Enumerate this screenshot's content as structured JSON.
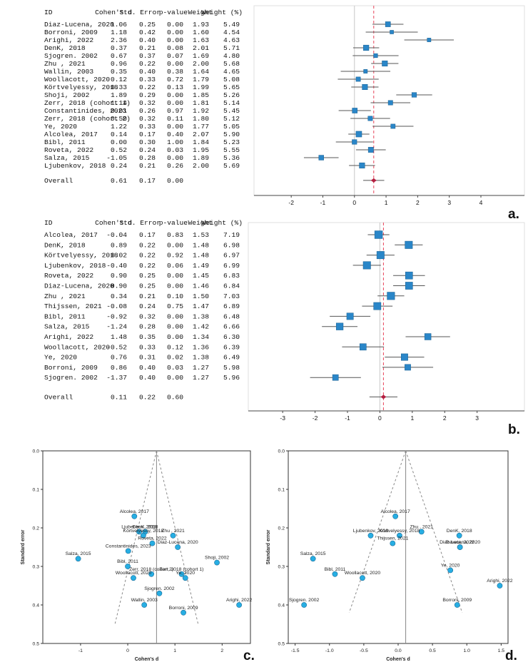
{
  "chart_data": [
    {
      "type": "forest",
      "panel": "a.",
      "headers": [
        "ID",
        "Cohen's d",
        "Std. Error",
        "p-value",
        "Weight",
        "Weight (%)"
      ],
      "rows": [
        {
          "id": "Diaz-Lucena, 2020",
          "d": "1.06",
          "se": "0.25",
          "p": "0.00",
          "w": "1.93",
          "wp": "5.49"
        },
        {
          "id": "Borroni, 2009",
          "d": "1.18",
          "se": "0.42",
          "p": "0.00",
          "w": "1.60",
          "wp": "4.54"
        },
        {
          "id": "Arighi, 2022",
          "d": "2.36",
          "se": "0.40",
          "p": "0.00",
          "w": "1.63",
          "wp": "4.63"
        },
        {
          "id": "DenK, 2018",
          "d": "0.37",
          "se": "0.21",
          "p": "0.08",
          "w": "2.01",
          "wp": "5.71"
        },
        {
          "id": "Sjogren. 2002",
          "d": "0.67",
          "se": "0.37",
          "p": "0.07",
          "w": "1.69",
          "wp": "4.80"
        },
        {
          "id": "Zhu , 2021",
          "d": "0.96",
          "se": "0.22",
          "p": "0.00",
          "w": "2.00",
          "wp": "5.68"
        },
        {
          "id": "Wallin, 2003",
          "d": "0.35",
          "se": "0.40",
          "p": "0.38",
          "w": "1.64",
          "wp": "4.65"
        },
        {
          "id": "Woollacott, 2020",
          "d": "0.12",
          "se": "0.33",
          "p": "0.72",
          "w": "1.79",
          "wp": "5.08"
        },
        {
          "id": "Körtvelyessy, 2018",
          "d": "0.33",
          "se": "0.22",
          "p": "0.13",
          "w": "1.99",
          "wp": "5.65"
        },
        {
          "id": "Shoji, 2002",
          "d": "1.89",
          "se": "0.29",
          "p": "0.00",
          "w": "1.85",
          "wp": "5.26"
        },
        {
          "id": "Zerr, 2018 (cohort 1)",
          "d": "1.14",
          "se": "0.32",
          "p": "0.00",
          "w": "1.81",
          "wp": "5.14"
        },
        {
          "id": "Constantinides, 2023",
          "d": "0.01",
          "se": "0.26",
          "p": "0.97",
          "w": "1.92",
          "wp": "5.45"
        },
        {
          "id": "Zerr, 2018 (cohort 2)",
          "d": "0.50",
          "se": "0.32",
          "p": "0.11",
          "w": "1.80",
          "wp": "5.12"
        },
        {
          "id": "Ye, 2020",
          "d": "1.22",
          "se": "0.33",
          "p": "0.00",
          "w": "1.77",
          "wp": "5.05"
        },
        {
          "id": "Alcolea, 2017",
          "d": "0.14",
          "se": "0.17",
          "p": "0.40",
          "w": "2.07",
          "wp": "5.90"
        },
        {
          "id": "Bibl, 2011",
          "d": "0.00",
          "se": "0.30",
          "p": "1.00",
          "w": "1.84",
          "wp": "5.23"
        },
        {
          "id": "Roveta, 2022",
          "d": "0.52",
          "se": "0.24",
          "p": "0.03",
          "w": "1.95",
          "wp": "5.55"
        },
        {
          "id": "Salza, 2015",
          "d": "-1.05",
          "se": "0.28",
          "p": "0.00",
          "w": "1.89",
          "wp": "5.36"
        },
        {
          "id": "Ljubenkov, 2018",
          "d": "0.24",
          "se": "0.21",
          "p": "0.26",
          "w": "2.00",
          "wp": "5.69"
        }
      ],
      "overall": {
        "id": "Overall",
        "d": "0.61",
        "se": "0.17",
        "p": "0.00"
      },
      "xlim": [
        -2.5,
        4.7
      ],
      "xticks": [
        "-2",
        "-1",
        "0",
        "1",
        "2",
        "3",
        "4"
      ]
    },
    {
      "type": "forest",
      "panel": "b.",
      "headers": [
        "ID",
        "Cohen's d",
        "Std. Error",
        "p-value",
        "Weight",
        "Weight (%)"
      ],
      "rows": [
        {
          "id": "Alcolea, 2017",
          "d": "-0.04",
          "se": "0.17",
          "p": "0.83",
          "w": "1.53",
          "wp": "7.19"
        },
        {
          "id": "DenK, 2018",
          "d": "0.89",
          "se": "0.22",
          "p": "0.00",
          "w": "1.48",
          "wp": "6.98"
        },
        {
          "id": "Körtvelyessy, 2018",
          "d": "0.02",
          "se": "0.22",
          "p": "0.92",
          "w": "1.48",
          "wp": "6.97"
        },
        {
          "id": "Ljubenkov, 2018",
          "d": "-0.40",
          "se": "0.22",
          "p": "0.06",
          "w": "1.49",
          "wp": "6.99"
        },
        {
          "id": "Roveta, 2022",
          "d": "0.90",
          "se": "0.25",
          "p": "0.00",
          "w": "1.45",
          "wp": "6.83"
        },
        {
          "id": "Diaz-Lucena, 2020",
          "d": "0.90",
          "se": "0.25",
          "p": "0.00",
          "w": "1.46",
          "wp": "6.84"
        },
        {
          "id": "Zhu , 2021",
          "d": "0.34",
          "se": "0.21",
          "p": "0.10",
          "w": "1.50",
          "wp": "7.03"
        },
        {
          "id": "Thijssen, 2021",
          "d": "-0.08",
          "se": "0.24",
          "p": "0.75",
          "w": "1.47",
          "wp": "6.89"
        },
        {
          "id": "Bibl, 2011",
          "d": "-0.92",
          "se": "0.32",
          "p": "0.00",
          "w": "1.38",
          "wp": "6.48"
        },
        {
          "id": "Salza, 2015",
          "d": "-1.24",
          "se": "0.28",
          "p": "0.00",
          "w": "1.42",
          "wp": "6.66"
        },
        {
          "id": "Arighi, 2022",
          "d": "1.48",
          "se": "0.35",
          "p": "0.00",
          "w": "1.34",
          "wp": "6.30"
        },
        {
          "id": "Woollacott, 2020",
          "d": "-0.52",
          "se": "0.33",
          "p": "0.12",
          "w": "1.36",
          "wp": "6.39"
        },
        {
          "id": "Ye, 2020",
          "d": "0.76",
          "se": "0.31",
          "p": "0.02",
          "w": "1.38",
          "wp": "6.49"
        },
        {
          "id": "Borroni, 2009",
          "d": "0.86",
          "se": "0.40",
          "p": "0.03",
          "w": "1.27",
          "wp": "5.98"
        },
        {
          "id": "Sjogren. 2002",
          "d": "-1.37",
          "se": "0.40",
          "p": "0.00",
          "w": "1.27",
          "wp": "5.96"
        }
      ],
      "overall": {
        "id": "Overall",
        "d": "0.11",
        "se": "0.22",
        "p": "0.60"
      },
      "xlim": [
        -3.4,
        3.8
      ],
      "xticks": [
        "-3",
        "-2",
        "-1",
        "0",
        "1",
        "2",
        "3"
      ]
    },
    {
      "type": "scatter",
      "panel": "c.",
      "xlabel": "Cohen's d",
      "ylabel": "Standard error",
      "xlim": [
        -1.8,
        2.6
      ],
      "ylim": [
        0.0,
        0.5
      ],
      "xticks": [
        "-1",
        "0",
        "1",
        "2"
      ],
      "yticks": [
        "0.0",
        "0.1",
        "0.2",
        "0.3",
        "0.4",
        "0.5"
      ],
      "summary_d": 0.61,
      "points": [
        {
          "label": "Alcolea, 2017",
          "x": 0.14,
          "y": 0.17
        },
        {
          "label": "DenK, 2018",
          "x": 0.37,
          "y": 0.21
        },
        {
          "label": "Zhu , 2021",
          "x": 0.96,
          "y": 0.22
        },
        {
          "label": "Ljubenkov, 2018",
          "x": 0.24,
          "y": 0.21
        },
        {
          "label": "Diaz-Lucena, 2020",
          "x": 1.06,
          "y": 0.25
        },
        {
          "label": "Körtvelyessy, 2018",
          "x": 0.33,
          "y": 0.22
        },
        {
          "label": "Roveta, 2022",
          "x": 0.52,
          "y": 0.24
        },
        {
          "label": "Salza, 2015",
          "x": -1.05,
          "y": 0.28
        },
        {
          "label": "Constantinides, 2023",
          "x": 0.01,
          "y": 0.26
        },
        {
          "label": "Bibl, 2011",
          "x": 0.0,
          "y": 0.3
        },
        {
          "label": "Shoji, 2002",
          "x": 1.89,
          "y": 0.29
        },
        {
          "label": "Zerr, 2018 (cohort 2)",
          "x": 0.5,
          "y": 0.32
        },
        {
          "label": "Zerr, 2018 (cohort 1)",
          "x": 1.14,
          "y": 0.32
        },
        {
          "label": "Woollacott, 2020",
          "x": 0.12,
          "y": 0.33
        },
        {
          "label": "Ye, 2020",
          "x": 1.22,
          "y": 0.33
        },
        {
          "label": "Sjogren. 2002",
          "x": 0.67,
          "y": 0.37
        },
        {
          "label": "Arighi, 2022",
          "x": 2.36,
          "y": 0.4
        },
        {
          "label": "Wallin, 2003",
          "x": 0.35,
          "y": 0.4
        },
        {
          "label": "Borroni, 2009",
          "x": 1.18,
          "y": 0.42
        }
      ]
    },
    {
      "type": "scatter",
      "panel": "d.",
      "xlabel": "Cohen's d",
      "ylabel": "Standard error",
      "xlim": [
        -1.6,
        1.6
      ],
      "ylim": [
        0.0,
        0.5
      ],
      "xticks": [
        "-1.5",
        "-1.0",
        "-0.5",
        "0.0",
        "0.5",
        "1.0",
        "1.5"
      ],
      "yticks": [
        "0.0",
        "0.1",
        "0.2",
        "0.3",
        "0.4",
        "0.5"
      ],
      "summary_d": 0.11,
      "points": [
        {
          "label": "Alcolea, 2017",
          "x": -0.04,
          "y": 0.17
        },
        {
          "label": "Zhu , 2021",
          "x": 0.34,
          "y": 0.21
        },
        {
          "label": "DenK, 2018",
          "x": 0.89,
          "y": 0.22
        },
        {
          "label": "Ljubenkov, 2018",
          "x": -0.4,
          "y": 0.22
        },
        {
          "label": "Körtvelyessy, 2018",
          "x": 0.02,
          "y": 0.22
        },
        {
          "label": "Diaz-Lucena, 2020",
          "x": 0.9,
          "y": 0.25
        },
        {
          "label": "Thijssen, 2021",
          "x": -0.08,
          "y": 0.24
        },
        {
          "label": "Roveta, 2022",
          "x": 0.9,
          "y": 0.25
        },
        {
          "label": "Salza, 2015",
          "x": -1.24,
          "y": 0.28
        },
        {
          "label": "Ye, 2020",
          "x": 0.76,
          "y": 0.31
        },
        {
          "label": "Bibl, 2011",
          "x": -0.92,
          "y": 0.32
        },
        {
          "label": "Woollacott, 2020",
          "x": -0.52,
          "y": 0.33
        },
        {
          "label": "Arighi, 2022",
          "x": 1.48,
          "y": 0.35
        },
        {
          "label": "Sjogren. 2002",
          "x": -1.37,
          "y": 0.4
        },
        {
          "label": "Borroni, 2009",
          "x": 0.86,
          "y": 0.4
        }
      ]
    }
  ]
}
